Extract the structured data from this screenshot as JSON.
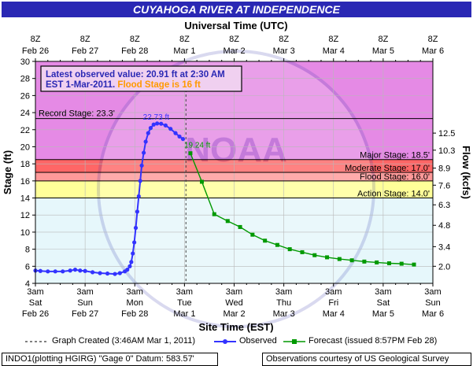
{
  "title": "CUYAHOGA RIVER AT INDEPENDENCE",
  "top_axis_title": "Universal Time (UTC)",
  "bottom_axis_title": "Site Time (EST)",
  "left_axis_title": "Stage (ft)",
  "right_axis_title": "Flow (kcfs)",
  "info_box": {
    "line1": "Latest observed value: 20.91 ft at 2:30 AM",
    "line2a": "EST 1-Mar-2011.",
    "line2b": " Flood Stage is 16 ft"
  },
  "legend": {
    "created": "Graph Created (3:46AM Mar 1, 2011)",
    "observed": "Observed",
    "forecast": "Forecast (issued 8:57PM Feb 28)"
  },
  "footer_left": "INDO1(plotting HGIRG) \"Gage 0\" Datum: 583.57'",
  "footer_right": "Observations courtesy of US Geological Survey",
  "watermark": "NOAA",
  "colors": {
    "title_bg": "#2a28b4",
    "observed": "#3333ff",
    "forecast": "#009900",
    "record_zone": "#e58ae5",
    "major_zone": "#ff6666",
    "moderate_zone": "#ff9999",
    "flood_zone": "#ffcc66",
    "action_zone": "#ffff99",
    "normal_zone": "#e6f7fb"
  },
  "chart_data": {
    "type": "line",
    "xlim": [
      0,
      8
    ],
    "ylim": [
      4,
      30
    ],
    "y_ticks": [
      4,
      6,
      8,
      10,
      12,
      14,
      16,
      18,
      20,
      22,
      24,
      26,
      28,
      30
    ],
    "top_ticks": [
      [
        "8Z",
        "Feb 26"
      ],
      [
        "8Z",
        "Feb 27"
      ],
      [
        "8Z",
        "Feb 28"
      ],
      [
        "8Z",
        "Mar 1"
      ],
      [
        "8Z",
        "Mar 2"
      ],
      [
        "8Z",
        "Mar 3"
      ],
      [
        "8Z",
        "Mar 4"
      ],
      [
        "8Z",
        "Mar 5"
      ],
      [
        "8Z",
        "Mar 6"
      ]
    ],
    "bottom_ticks": [
      [
        "3am",
        "Sat",
        "Feb 26"
      ],
      [
        "3am",
        "Sun",
        "Feb 27"
      ],
      [
        "3am",
        "Mon",
        "Feb 28"
      ],
      [
        "3am",
        "Tue",
        "Mar 1"
      ],
      [
        "3am",
        "Wed",
        "Mar 2"
      ],
      [
        "3am",
        "Thu",
        "Mar 3"
      ],
      [
        "3am",
        "Fri",
        "Mar 4"
      ],
      [
        "3am",
        "Sat",
        "Mar 5"
      ],
      [
        "3am",
        "Sun",
        "Mar 6"
      ]
    ],
    "right_ticks": [
      {
        "stage": 6.0,
        "label": "2.0"
      },
      {
        "stage": 8.3,
        "label": "3.4"
      },
      {
        "stage": 10.8,
        "label": "4.8"
      },
      {
        "stage": 13.2,
        "label": "6.3"
      },
      {
        "stage": 15.5,
        "label": "7.6"
      },
      {
        "stage": 17.5,
        "label": "8.9"
      },
      {
        "stage": 19.6,
        "label": "10.3"
      },
      {
        "stage": 21.6,
        "label": "12.5"
      }
    ],
    "flood_categories": [
      {
        "name": "Record Stage: 23.3'",
        "stage": 23.3
      },
      {
        "name": "Major Stage: 18.5'",
        "stage": 18.5
      },
      {
        "name": "Moderate Stage: 17.0'",
        "stage": 17.0
      },
      {
        "name": "Flood Stage: 16.0'",
        "stage": 16.0
      },
      {
        "name": "Action Stage: 14.0'",
        "stage": 14.0
      }
    ],
    "graph_created_x": 3.03,
    "observed": {
      "name": "Observed",
      "points": [
        [
          0.0,
          5.5
        ],
        [
          0.1,
          5.45
        ],
        [
          0.25,
          5.4
        ],
        [
          0.4,
          5.4
        ],
        [
          0.55,
          5.4
        ],
        [
          0.7,
          5.5
        ],
        [
          0.8,
          5.6
        ],
        [
          0.9,
          5.5
        ],
        [
          1.0,
          5.45
        ],
        [
          1.15,
          5.3
        ],
        [
          1.3,
          5.2
        ],
        [
          1.45,
          5.15
        ],
        [
          1.6,
          5.1
        ],
        [
          1.7,
          5.2
        ],
        [
          1.8,
          5.4
        ],
        [
          1.85,
          5.6
        ],
        [
          1.9,
          6.0
        ],
        [
          1.93,
          6.5
        ],
        [
          1.96,
          7.5
        ],
        [
          1.99,
          8.8
        ],
        [
          2.02,
          10.5
        ],
        [
          2.05,
          12.4
        ],
        [
          2.08,
          14.2
        ],
        [
          2.11,
          16.0
        ],
        [
          2.14,
          17.8
        ],
        [
          2.18,
          19.3
        ],
        [
          2.22,
          20.6
        ],
        [
          2.27,
          21.6
        ],
        [
          2.32,
          22.2
        ],
        [
          2.38,
          22.6
        ],
        [
          2.45,
          22.73
        ],
        [
          2.53,
          22.7
        ],
        [
          2.62,
          22.5
        ],
        [
          2.72,
          22.1
        ],
        [
          2.82,
          21.6
        ],
        [
          2.9,
          21.2
        ],
        [
          2.97,
          20.91
        ]
      ],
      "peak_label": "22.73 ft",
      "peak": [
        2.45,
        22.73
      ]
    },
    "forecast": {
      "name": "Forecast",
      "points": [
        [
          3.12,
          19.24
        ],
        [
          3.35,
          15.9
        ],
        [
          3.6,
          12.1
        ],
        [
          3.87,
          11.3
        ],
        [
          4.12,
          10.6
        ],
        [
          4.37,
          9.7
        ],
        [
          4.62,
          9.0
        ],
        [
          4.87,
          8.5
        ],
        [
          5.12,
          8.0
        ],
        [
          5.37,
          7.65
        ],
        [
          5.62,
          7.3
        ],
        [
          5.87,
          7.05
        ],
        [
          6.12,
          6.85
        ],
        [
          6.37,
          6.7
        ],
        [
          6.62,
          6.55
        ],
        [
          6.87,
          6.45
        ],
        [
          7.12,
          6.35
        ],
        [
          7.37,
          6.3
        ],
        [
          7.62,
          6.2
        ]
      ],
      "start_label": "19.24 ft",
      "start": [
        3.12,
        19.24
      ]
    }
  }
}
